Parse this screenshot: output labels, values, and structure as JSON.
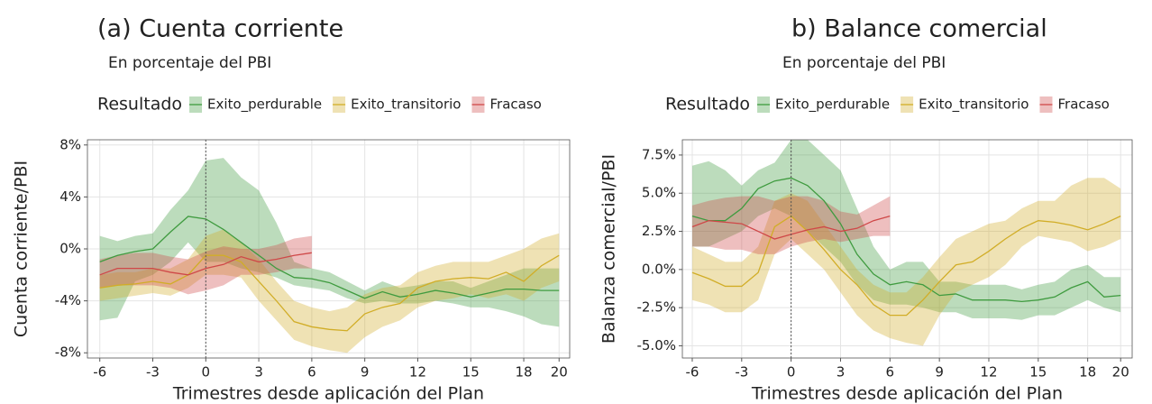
{
  "chart_data": [
    {
      "type": "line",
      "title": "(a) Cuenta corriente",
      "subtitle": "En porcentaje del PBI",
      "legend_title": "Resultado",
      "legend": "top",
      "xlabel": "Trimestres desde aplicación del Plan",
      "ylabel": "Cuenta corriente/PBI",
      "x": [
        -6,
        -5,
        -4,
        -3,
        -2,
        -1,
        0,
        1,
        2,
        3,
        4,
        5,
        6,
        7,
        8,
        9,
        10,
        11,
        12,
        13,
        14,
        15,
        16,
        17,
        18,
        19,
        20
      ],
      "xlim": [
        -6.7,
        20.6
      ],
      "xticks": [
        -6,
        -3,
        0,
        3,
        6,
        9,
        12,
        15,
        18,
        20
      ],
      "ylim": [
        -8.4,
        8.4
      ],
      "yticks": [
        {
          "value": -8,
          "label": "-8%"
        },
        {
          "value": -4,
          "label": "-4%"
        },
        {
          "value": 0,
          "label": "0%"
        },
        {
          "value": 4,
          "label": "4%"
        },
        {
          "value": 8,
          "label": "8%"
        }
      ],
      "vline": 0,
      "grid": true,
      "series": [
        {
          "name": "Exito_perdurable",
          "color": "#3f9b3f",
          "values": [
            -1,
            -0.5,
            -0.2,
            0,
            1.3,
            2.5,
            2.3,
            1.5,
            0.5,
            -0.5,
            -1.5,
            -2.2,
            -2.3,
            -2.6,
            -3.2,
            -3.8,
            -3.3,
            -3.7,
            -3.5,
            -3.2,
            -3.4,
            -3.7,
            -3.4,
            -3.1,
            -3.1,
            -3.2,
            -3.2
          ],
          "lower": [
            -5.5,
            -5.3,
            -2.5,
            -2,
            -1,
            0.5,
            -1,
            -1,
            -1.5,
            -1.8,
            -2.2,
            -2.8,
            -3,
            -3.2,
            -3.8,
            -4.2,
            -4,
            -4.2,
            -4.2,
            -4,
            -4.2,
            -4.5,
            -4.5,
            -4.8,
            -5.2,
            -5.8,
            -6
          ],
          "upper": [
            1,
            0.6,
            1,
            1.2,
            3,
            4.5,
            6.8,
            7,
            5.5,
            4.5,
            2,
            -1,
            -1.5,
            -1.8,
            -2.5,
            -3.2,
            -2.5,
            -3,
            -2.8,
            -2.5,
            -2.5,
            -3,
            -2.5,
            -2,
            -1.5,
            -1.5,
            -1.5
          ]
        },
        {
          "name": "Exito_transitorio",
          "color": "#d1ad27",
          "values": [
            -3,
            -2.8,
            -2.7,
            -2.5,
            -2.7,
            -2,
            -0.5,
            -0.5,
            -1,
            -2.5,
            -4,
            -5.6,
            -6,
            -6.2,
            -6.3,
            -5,
            -4.5,
            -4.2,
            -3,
            -2.5,
            -2.3,
            -2.2,
            -2.3,
            -1.8,
            -2.5,
            -1.3,
            -0.5
          ],
          "lower": [
            -4,
            -3.8,
            -3.6,
            -3.4,
            -3.6,
            -3,
            -2,
            -2,
            -2.2,
            -4,
            -5.5,
            -7,
            -7.5,
            -7.8,
            -8,
            -6.8,
            -6,
            -5.5,
            -4.5,
            -4,
            -3.8,
            -3.5,
            -3.8,
            -3.5,
            -4,
            -3,
            -2.5
          ],
          "upper": [
            -2,
            -1.8,
            -1.8,
            -1.5,
            -1.5,
            -0.8,
            1,
            1.5,
            0.5,
            -0.8,
            -2.5,
            -4,
            -4.5,
            -4.8,
            -4.5,
            -3.5,
            -3,
            -2.8,
            -1.8,
            -1.3,
            -1,
            -1,
            -1,
            -0.5,
            0,
            0.8,
            1.2
          ]
        },
        {
          "name": "Fracaso",
          "color": "#cf4848",
          "values": [
            -2,
            -1.5,
            -1.5,
            -1.5,
            -1.8,
            -2,
            -1.5,
            -1.2,
            -0.6,
            -1,
            -0.8,
            -0.5,
            -0.3,
            null,
            null,
            null,
            null,
            null,
            null,
            null,
            null,
            null,
            null,
            null,
            null,
            null,
            null
          ],
          "lower": [
            -3,
            -2.8,
            -2.8,
            -2.8,
            -3,
            -3.5,
            -3.2,
            -2.8,
            -2,
            -2,
            -1.8,
            -1.5,
            -1.5,
            null,
            null,
            null,
            null,
            null,
            null,
            null,
            null,
            null,
            null,
            null,
            null,
            null,
            null
          ],
          "upper": [
            -0.8,
            -0.5,
            -0.3,
            -0.3,
            -0.6,
            -0.8,
            -0.2,
            0.2,
            0,
            0,
            0.3,
            0.8,
            1,
            null,
            null,
            null,
            null,
            null,
            null,
            null,
            null,
            null,
            null,
            null,
            null,
            null,
            null
          ]
        }
      ]
    },
    {
      "type": "line",
      "title": "b) Balance comercial",
      "subtitle": "En porcentaje del PBI",
      "legend_title": "Resultado",
      "legend": "top",
      "xlabel": "Trimestres desde aplicación del Plan",
      "ylabel": "Balanza comercial/PBI",
      "x": [
        -6,
        -5,
        -4,
        -3,
        -2,
        -1,
        0,
        1,
        2,
        3,
        4,
        5,
        6,
        7,
        8,
        9,
        10,
        11,
        12,
        13,
        14,
        15,
        16,
        17,
        18,
        19,
        20
      ],
      "xlim": [
        -6.6,
        20.7
      ],
      "xticks": [
        -6,
        -3,
        0,
        3,
        6,
        9,
        12,
        15,
        18,
        20
      ],
      "ylim": [
        -5.8,
        8.5
      ],
      "yticks": [
        {
          "value": -5,
          "label": "-5.0%"
        },
        {
          "value": -2.5,
          "label": "-2.5%"
        },
        {
          "value": 0,
          "label": "0.0%"
        },
        {
          "value": 2.5,
          "label": "2.5%"
        },
        {
          "value": 5,
          "label": "5.0%"
        },
        {
          "value": 7.5,
          "label": "7.5%"
        }
      ],
      "vline": 0,
      "grid": true,
      "series": [
        {
          "name": "Exito_perdurable",
          "color": "#3f9b3f",
          "values": [
            3.5,
            3.2,
            3.2,
            4,
            5.3,
            5.8,
            6,
            5.5,
            4.5,
            3,
            1,
            -0.3,
            -1,
            -0.8,
            -1,
            -1.7,
            -1.6,
            -2,
            -2,
            -2,
            -2.1,
            -2,
            -1.8,
            -1.2,
            -0.8,
            -1.8,
            -1.7
          ],
          "lower": [
            1.5,
            1.5,
            2,
            2.5,
            3.5,
            4,
            3.5,
            2.5,
            1.5,
            0.5,
            -1,
            -2,
            -2.3,
            -2.3,
            -2.5,
            -2.8,
            -2.8,
            -3.2,
            -3.2,
            -3.2,
            -3.3,
            -3,
            -3,
            -2.5,
            -2,
            -2.5,
            -2.8
          ],
          "upper": [
            6.8,
            7.1,
            6.5,
            5.5,
            6.5,
            7,
            8.5,
            8.5,
            7.5,
            6.5,
            4,
            1.5,
            0,
            0.5,
            0.5,
            -0.8,
            -0.8,
            -1,
            -1,
            -1,
            -1.3,
            -1,
            -0.8,
            0,
            0.3,
            -0.5,
            -0.5
          ]
        },
        {
          "name": "Exito_transitorio",
          "color": "#d1ad27",
          "values": [
            -0.2,
            -0.6,
            -1.1,
            -1.1,
            -0.2,
            2.8,
            3.5,
            2.5,
            1.3,
            0,
            -1,
            -2.3,
            -3,
            -3,
            -2,
            -0.8,
            0.3,
            0.5,
            1.2,
            2,
            2.7,
            3.2,
            3.1,
            2.9,
            2.6,
            3,
            3.5
          ],
          "lower": [
            -2,
            -2.3,
            -2.8,
            -2.8,
            -2,
            1,
            2,
            1,
            0,
            -1.5,
            -3,
            -4,
            -4.5,
            -4.8,
            -5,
            -3,
            -1.5,
            -1,
            -0.5,
            0.3,
            1.5,
            2.2,
            2,
            1.8,
            1.2,
            1.5,
            2
          ],
          "upper": [
            1.5,
            1,
            0.5,
            0.5,
            1.5,
            4.5,
            5,
            4.5,
            3,
            1.5,
            0,
            -1,
            -1.5,
            -1.5,
            -0.5,
            0.8,
            2,
            2.5,
            3,
            3.2,
            4,
            4.5,
            4.5,
            5.5,
            6,
            6,
            5.3
          ]
        },
        {
          "name": "Fracaso",
          "color": "#cf4848",
          "values": [
            2.8,
            3.2,
            3.1,
            3,
            2.5,
            2,
            2.3,
            2.6,
            2.8,
            2.5,
            2.7,
            3.2,
            3.5,
            null,
            null,
            null,
            null,
            null,
            null,
            null,
            null,
            null,
            null,
            null,
            null,
            null,
            null
          ],
          "lower": [
            1.5,
            1.5,
            1.3,
            1.3,
            1,
            1,
            1.5,
            1.8,
            2,
            1.8,
            2,
            2.2,
            2.2,
            null,
            null,
            null,
            null,
            null,
            null,
            null,
            null,
            null,
            null,
            null,
            null,
            null,
            null
          ],
          "upper": [
            4.2,
            4.5,
            4.7,
            4.8,
            4.8,
            4.5,
            4.8,
            4.8,
            4.5,
            3.8,
            3.6,
            4.2,
            4.8,
            null,
            null,
            null,
            null,
            null,
            null,
            null,
            null,
            null,
            null,
            null,
            null,
            null,
            null
          ]
        }
      ]
    }
  ]
}
